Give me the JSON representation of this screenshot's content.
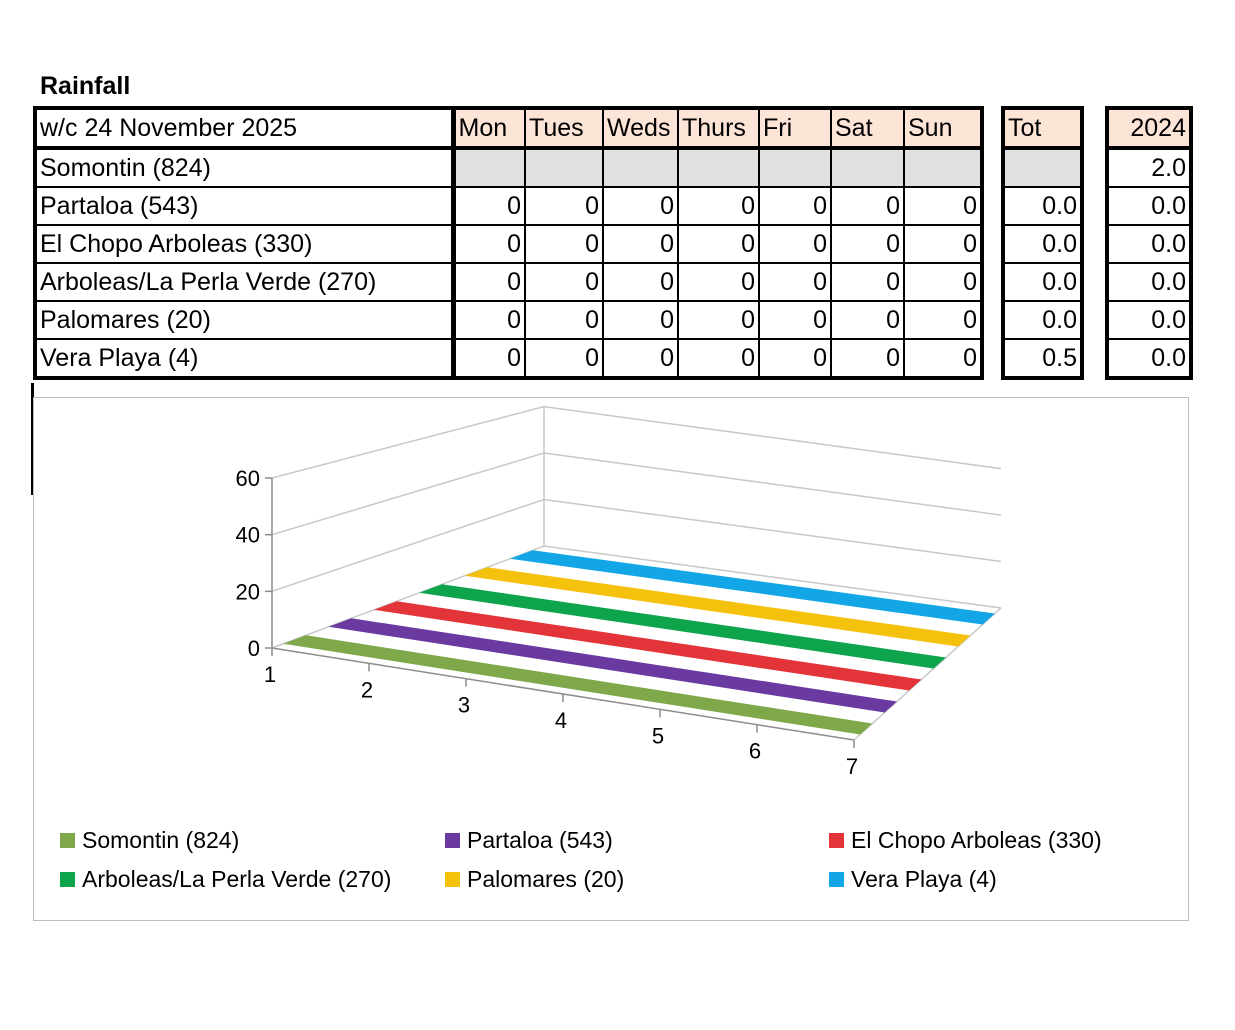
{
  "title": "Rainfall",
  "table": {
    "week_label": "w/c 24 November  2025",
    "days": [
      "Mon",
      "Tues",
      "Weds",
      "Thurs",
      "Fri",
      "Sat",
      "Sun"
    ],
    "tot_header": "Tot",
    "prev_year_header": "2024",
    "rows": [
      {
        "site": "Somontin (824)",
        "days": [
          "",
          "",
          "",
          "",
          "",
          "",
          ""
        ],
        "tot": "",
        "prev": "2.0"
      },
      {
        "site": "Partaloa (543)",
        "days": [
          "0",
          "0",
          "0",
          "0",
          "0",
          "0",
          "0"
        ],
        "tot": "0.0",
        "prev": "0.0"
      },
      {
        "site": "El Chopo Arboleas (330)",
        "days": [
          "0",
          "0",
          "0",
          "0",
          "0",
          "0",
          "0"
        ],
        "tot": "0.0",
        "prev": "0.0"
      },
      {
        "site": "Arboleas/La Perla Verde (270)",
        "days": [
          "0",
          "0",
          "0",
          "0",
          "0",
          "0",
          "0"
        ],
        "tot": "0.0",
        "prev": "0.0"
      },
      {
        "site": "Palomares (20)",
        "days": [
          "0",
          "0",
          "0",
          "0",
          "0",
          "0",
          "0"
        ],
        "tot": "0.0",
        "prev": "0.0"
      },
      {
        "site": "Vera Playa (4)",
        "days": [
          "0",
          "0",
          "0",
          "0",
          "0",
          "0",
          "0"
        ],
        "tot": "0.5",
        "prev": "0.0"
      }
    ],
    "colors": {
      "header_bg": "#fce4d6",
      "missing_bg": "#e0e0e0"
    }
  },
  "chart_data": {
    "type": "line",
    "subtype": "3d-line",
    "x": [
      1,
      2,
      3,
      4,
      5,
      6,
      7
    ],
    "x_tick_labels": [
      "1",
      "2",
      "3",
      "4",
      "5",
      "6",
      "7"
    ],
    "y_tick_labels": [
      "0",
      "20",
      "40",
      "60"
    ],
    "ylim": [
      0,
      60
    ],
    "grid": true,
    "legend_position": "bottom",
    "series": [
      {
        "name": "Somontin (824)",
        "values": [
          0,
          0,
          0,
          0,
          0,
          0,
          0
        ],
        "color": "#7fa84a"
      },
      {
        "name": "Partaloa (543)",
        "values": [
          0,
          0,
          0,
          0,
          0,
          0,
          0
        ],
        "color": "#6a3aa0"
      },
      {
        "name": "El Chopo Arboleas (330)",
        "values": [
          0,
          0,
          0,
          0,
          0,
          0,
          0
        ],
        "color": "#e3343a"
      },
      {
        "name": "Arboleas/La Perla Verde (270)",
        "values": [
          0,
          0,
          0,
          0,
          0,
          0,
          0
        ],
        "color": "#0ea44c"
      },
      {
        "name": "Palomares (20)",
        "values": [
          0,
          0,
          0,
          0,
          0,
          0,
          0
        ],
        "color": "#f4c10d"
      },
      {
        "name": "Vera Playa (4)",
        "values": [
          0,
          0,
          0,
          0,
          0,
          0,
          0
        ],
        "color": "#12a6e6"
      }
    ]
  }
}
